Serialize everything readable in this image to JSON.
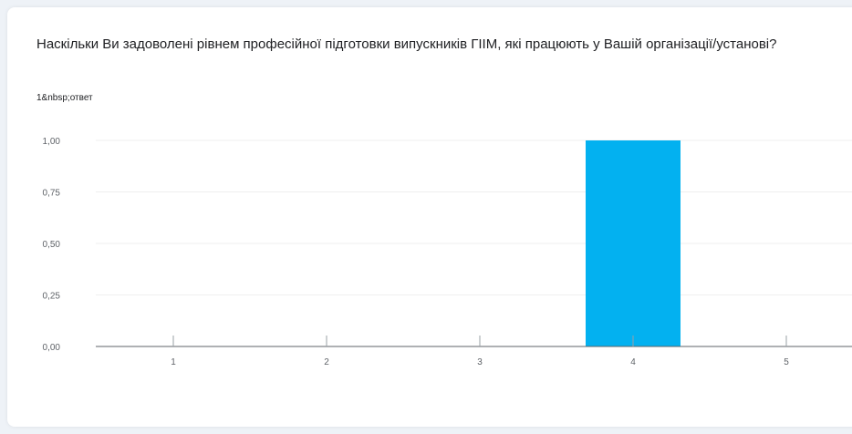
{
  "card": {
    "title": "Наскільки Ви задоволені рівнем професійної підготовки випускників ГІІМ, які працюють у Вашій організації/установі?",
    "subtitle": "1&nbsp;ответ"
  },
  "colors": {
    "bar": "#03b1f0",
    "grid": "#efefef",
    "axis": "#5f6368",
    "background": "#eef2f7"
  },
  "chart_data": {
    "type": "bar",
    "categories": [
      "1",
      "2",
      "3",
      "4",
      "5"
    ],
    "values": [
      0,
      0,
      0,
      1,
      0
    ],
    "yticks": [
      "0,00",
      "0,25",
      "0,50",
      "0,75",
      "1,00"
    ],
    "ylim": [
      0,
      1
    ],
    "grid": true,
    "legend": "none",
    "xlabel": "",
    "ylabel": ""
  }
}
